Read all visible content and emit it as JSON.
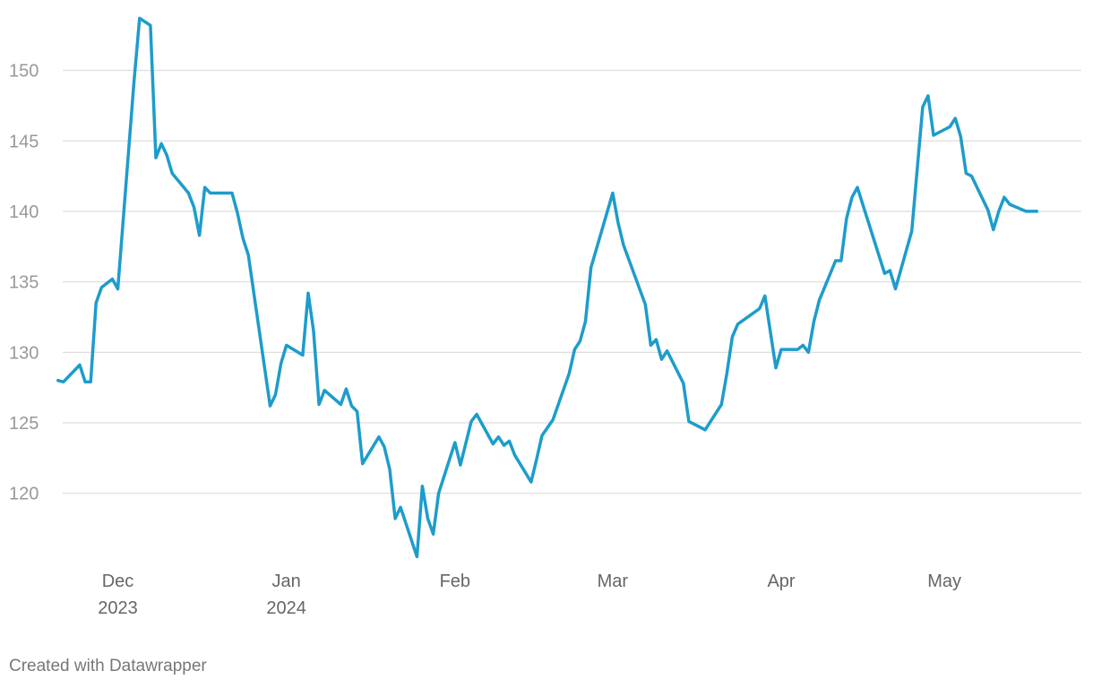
{
  "chart_data": {
    "type": "line",
    "title": "",
    "xlabel": "",
    "ylabel": "",
    "ylim": [
      114,
      154
    ],
    "grid": true,
    "yticks": [
      120,
      125,
      130,
      135,
      140,
      145,
      150
    ],
    "xticks": [
      {
        "date": "2023-12-01",
        "label": "Dec",
        "sublabel": "2023"
      },
      {
        "date": "2024-01-01",
        "label": "Jan",
        "sublabel": "2024"
      },
      {
        "date": "2024-02-01",
        "label": "Feb",
        "sublabel": ""
      },
      {
        "date": "2024-03-01",
        "label": "Mar",
        "sublabel": ""
      },
      {
        "date": "2024-04-01",
        "label": "Apr",
        "sublabel": ""
      },
      {
        "date": "2024-05-01",
        "label": "May",
        "sublabel": ""
      }
    ],
    "series": [
      {
        "color": "#1d9ccc",
        "points": [
          [
            "2023-11-20",
            128.0
          ],
          [
            "2023-11-21",
            127.9
          ],
          [
            "2023-11-24",
            129.1
          ],
          [
            "2023-11-25",
            127.9
          ],
          [
            "2023-11-26",
            127.9
          ],
          [
            "2023-11-27",
            133.5
          ],
          [
            "2023-11-28",
            134.6
          ],
          [
            "2023-11-30",
            135.2
          ],
          [
            "2023-12-01",
            134.5
          ],
          [
            "2023-12-04",
            149.3
          ],
          [
            "2023-12-05",
            153.7
          ],
          [
            "2023-12-07",
            153.2
          ],
          [
            "2023-12-08",
            143.8
          ],
          [
            "2023-12-09",
            144.8
          ],
          [
            "2023-12-10",
            144.0
          ],
          [
            "2023-12-11",
            142.7
          ],
          [
            "2023-12-14",
            141.3
          ],
          [
            "2023-12-15",
            140.3
          ],
          [
            "2023-12-16",
            138.3
          ],
          [
            "2023-12-17",
            141.7
          ],
          [
            "2023-12-18",
            141.3
          ],
          [
            "2023-12-22",
            141.3
          ],
          [
            "2023-12-23",
            139.9
          ],
          [
            "2023-12-24",
            138.1
          ],
          [
            "2023-12-25",
            136.9
          ],
          [
            "2023-12-29",
            126.2
          ],
          [
            "2023-12-30",
            127.0
          ],
          [
            "2023-12-31",
            129.2
          ],
          [
            "2024-01-01",
            130.5
          ],
          [
            "2024-01-04",
            129.8
          ],
          [
            "2024-01-05",
            134.2
          ],
          [
            "2024-01-06",
            131.5
          ],
          [
            "2024-01-07",
            126.3
          ],
          [
            "2024-01-08",
            127.3
          ],
          [
            "2024-01-11",
            126.3
          ],
          [
            "2024-01-12",
            127.4
          ],
          [
            "2024-01-13",
            126.2
          ],
          [
            "2024-01-14",
            125.8
          ],
          [
            "2024-01-15",
            122.1
          ],
          [
            "2024-01-18",
            124.0
          ],
          [
            "2024-01-19",
            123.3
          ],
          [
            "2024-01-20",
            121.7
          ],
          [
            "2024-01-21",
            118.2
          ],
          [
            "2024-01-22",
            119.0
          ],
          [
            "2024-01-25",
            115.5
          ],
          [
            "2024-01-26",
            120.5
          ],
          [
            "2024-01-27",
            118.2
          ],
          [
            "2024-01-28",
            117.1
          ],
          [
            "2024-01-29",
            120.0
          ],
          [
            "2024-02-01",
            123.6
          ],
          [
            "2024-02-02",
            122.0
          ],
          [
            "2024-02-04",
            125.1
          ],
          [
            "2024-02-05",
            125.6
          ],
          [
            "2024-02-08",
            123.5
          ],
          [
            "2024-02-09",
            124.0
          ],
          [
            "2024-02-10",
            123.4
          ],
          [
            "2024-02-11",
            123.7
          ],
          [
            "2024-02-12",
            122.7
          ],
          [
            "2024-02-15",
            120.8
          ],
          [
            "2024-02-16",
            122.4
          ],
          [
            "2024-02-17",
            124.1
          ],
          [
            "2024-02-19",
            125.2
          ],
          [
            "2024-02-22",
            128.5
          ],
          [
            "2024-02-23",
            130.2
          ],
          [
            "2024-02-24",
            130.8
          ],
          [
            "2024-02-25",
            132.2
          ],
          [
            "2024-02-26",
            136.0
          ],
          [
            "2024-03-01",
            141.3
          ],
          [
            "2024-03-02",
            139.2
          ],
          [
            "2024-03-03",
            137.6
          ],
          [
            "2024-03-07",
            133.4
          ],
          [
            "2024-03-08",
            130.5
          ],
          [
            "2024-03-09",
            130.9
          ],
          [
            "2024-03-10",
            129.5
          ],
          [
            "2024-03-11",
            130.1
          ],
          [
            "2024-03-14",
            127.8
          ],
          [
            "2024-03-15",
            125.1
          ],
          [
            "2024-03-17",
            124.7
          ],
          [
            "2024-03-18",
            124.5
          ],
          [
            "2024-03-21",
            126.3
          ],
          [
            "2024-03-22",
            128.5
          ],
          [
            "2024-03-23",
            131.1
          ],
          [
            "2024-03-24",
            132.0
          ],
          [
            "2024-03-28",
            133.1
          ],
          [
            "2024-03-29",
            134.0
          ],
          [
            "2024-03-31",
            128.9
          ],
          [
            "2024-04-01",
            130.2
          ],
          [
            "2024-04-04",
            130.2
          ],
          [
            "2024-04-05",
            130.5
          ],
          [
            "2024-04-06",
            130.0
          ],
          [
            "2024-04-07",
            132.2
          ],
          [
            "2024-04-08",
            133.7
          ],
          [
            "2024-04-11",
            136.5
          ],
          [
            "2024-04-12",
            136.5
          ],
          [
            "2024-04-13",
            139.5
          ],
          [
            "2024-04-14",
            141.0
          ],
          [
            "2024-04-15",
            141.7
          ],
          [
            "2024-04-20",
            135.6
          ],
          [
            "2024-04-21",
            135.8
          ],
          [
            "2024-04-22",
            134.5
          ],
          [
            "2024-04-25",
            138.6
          ],
          [
            "2024-04-27",
            147.4
          ],
          [
            "2024-04-28",
            148.2
          ],
          [
            "2024-04-29",
            145.4
          ],
          [
            "2024-05-02",
            146.0
          ],
          [
            "2024-05-03",
            146.6
          ],
          [
            "2024-05-04",
            145.3
          ],
          [
            "2024-05-05",
            142.7
          ],
          [
            "2024-05-06",
            142.5
          ],
          [
            "2024-05-09",
            140.1
          ],
          [
            "2024-05-10",
            138.7
          ],
          [
            "2024-05-11",
            140.0
          ],
          [
            "2024-05-12",
            141.0
          ],
          [
            "2024-05-13",
            140.5
          ],
          [
            "2024-05-16",
            140.0
          ],
          [
            "2024-05-18",
            140.0
          ]
        ]
      }
    ]
  },
  "footer": {
    "credit": "Created with Datawrapper"
  }
}
